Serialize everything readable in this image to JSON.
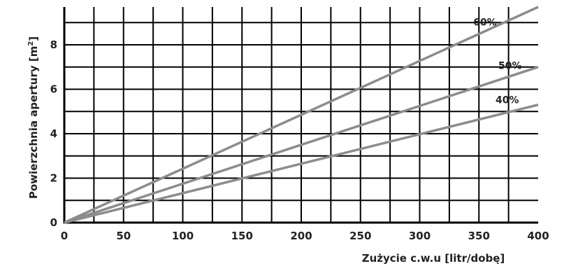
{
  "chart_data": {
    "type": "line",
    "title": "",
    "xlabel": "Zużycie c.w.u [litr/dobę]",
    "ylabel_main": "Powierzchnia apertury [m",
    "ylabel_sup": "2",
    "ylabel_close": "]",
    "xlim": [
      0,
      400
    ],
    "ylim": [
      0,
      9.7
    ],
    "grid": true,
    "xticks": [
      "0",
      "50",
      "100",
      "150",
      "200",
      "250",
      "300",
      "350",
      "400"
    ],
    "xtick_values": [
      0,
      50,
      100,
      150,
      200,
      250,
      300,
      350,
      400
    ],
    "yticks": [
      "0",
      "2",
      "4",
      "6",
      "8"
    ],
    "ytick_values": [
      0,
      2,
      4,
      6,
      8
    ],
    "series": [
      {
        "name": "60%",
        "x": [
          0,
          400
        ],
        "y": [
          0,
          9.7
        ]
      },
      {
        "name": "50%",
        "x": [
          0,
          400
        ],
        "y": [
          0,
          7.0
        ]
      },
      {
        "name": "40%",
        "x": [
          0,
          400
        ],
        "y": [
          0,
          5.3
        ]
      }
    ],
    "colors": {
      "series": "#8c8c8c",
      "grid": "#000000"
    }
  }
}
